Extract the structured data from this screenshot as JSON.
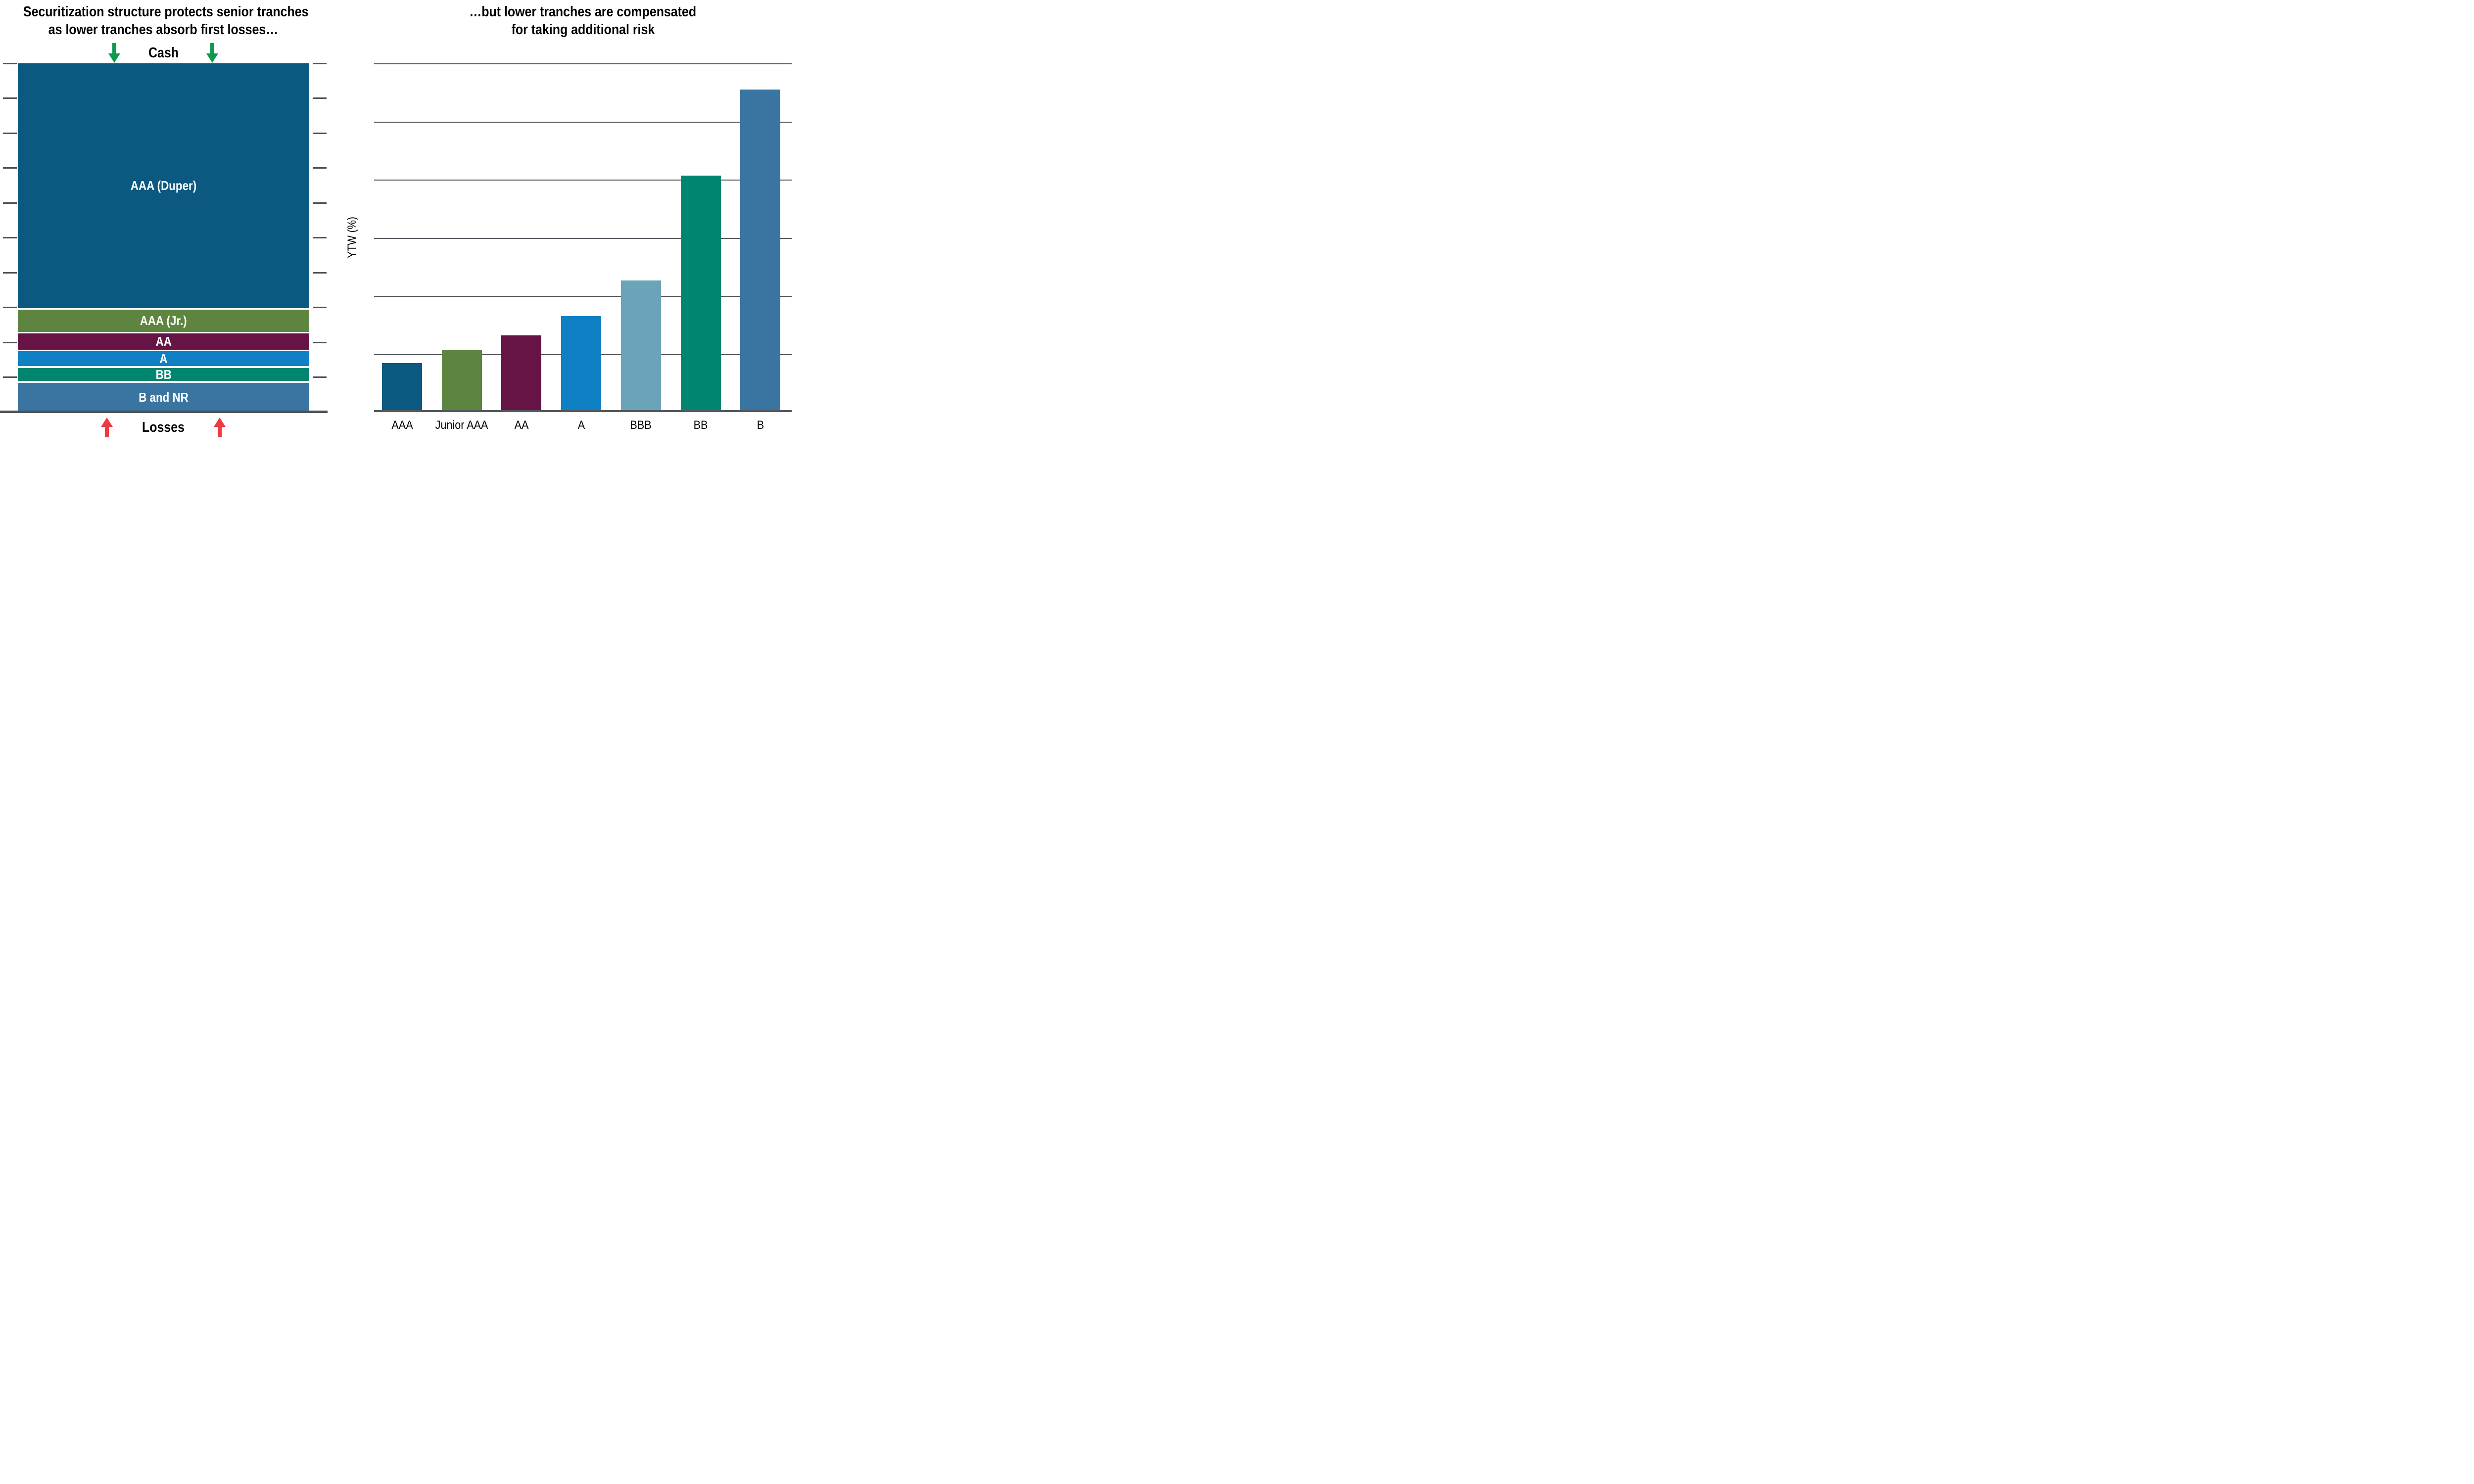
{
  "colors": {
    "axis_gray": "#4e5257",
    "grid_gray": "#55595e",
    "title_text": "#000000",
    "bar_label_text": "#ffffff"
  },
  "chart_data": [
    {
      "type": "stacked-column",
      "title_line1": "Securitization structure protects senior tranches",
      "title_line2": "as lower tranches absorb first losses…",
      "inflow_label": "Cash",
      "inflow_arrow_color": "#0d9a4e",
      "outflow_label": "Losses",
      "outflow_arrow_color": "#ee3a40",
      "categories": [
        "AAA (Duper)",
        "AAA (Jr.)",
        "AA",
        "A",
        "BB",
        "B and NR"
      ],
      "heights_pct_of_deal": [
        70.2,
        6.3,
        4.7,
        4.3,
        3.8,
        8.4
      ],
      "gap_pct_between_blocks": 0.46,
      "colors": [
        "#0b5880",
        "#5d8540",
        "#651445",
        "#0e80c3",
        "#008571",
        "#3a75a1"
      ],
      "axis": {
        "side_tick_count": 11,
        "note": "unlabeled ticks on both sides at equal 10% intervals"
      },
      "grid": "off"
    },
    {
      "type": "bar",
      "title_line1": "…but lower tranches are compensated",
      "title_line2": "for taking additional risk",
      "ylabel": "YTW (%)",
      "categories": [
        "AAA",
        "Junior AAA",
        "AA",
        "A",
        "BBB",
        "BB",
        "B"
      ],
      "values": [
        0.84,
        1.07,
        1.32,
        1.65,
        2.26,
        4.07,
        5.55
      ],
      "value_units": "gridline intervals (y-axis ticks unlabeled)",
      "ylim": [
        0,
        6
      ],
      "gridline_count": 6,
      "grid": "horizontal, unlabeled",
      "legend": "none",
      "colors": [
        "#0b5880",
        "#5d8540",
        "#651445",
        "#0e80c3",
        "#6ba4b8",
        "#008571",
        "#3a75a1"
      ]
    }
  ]
}
